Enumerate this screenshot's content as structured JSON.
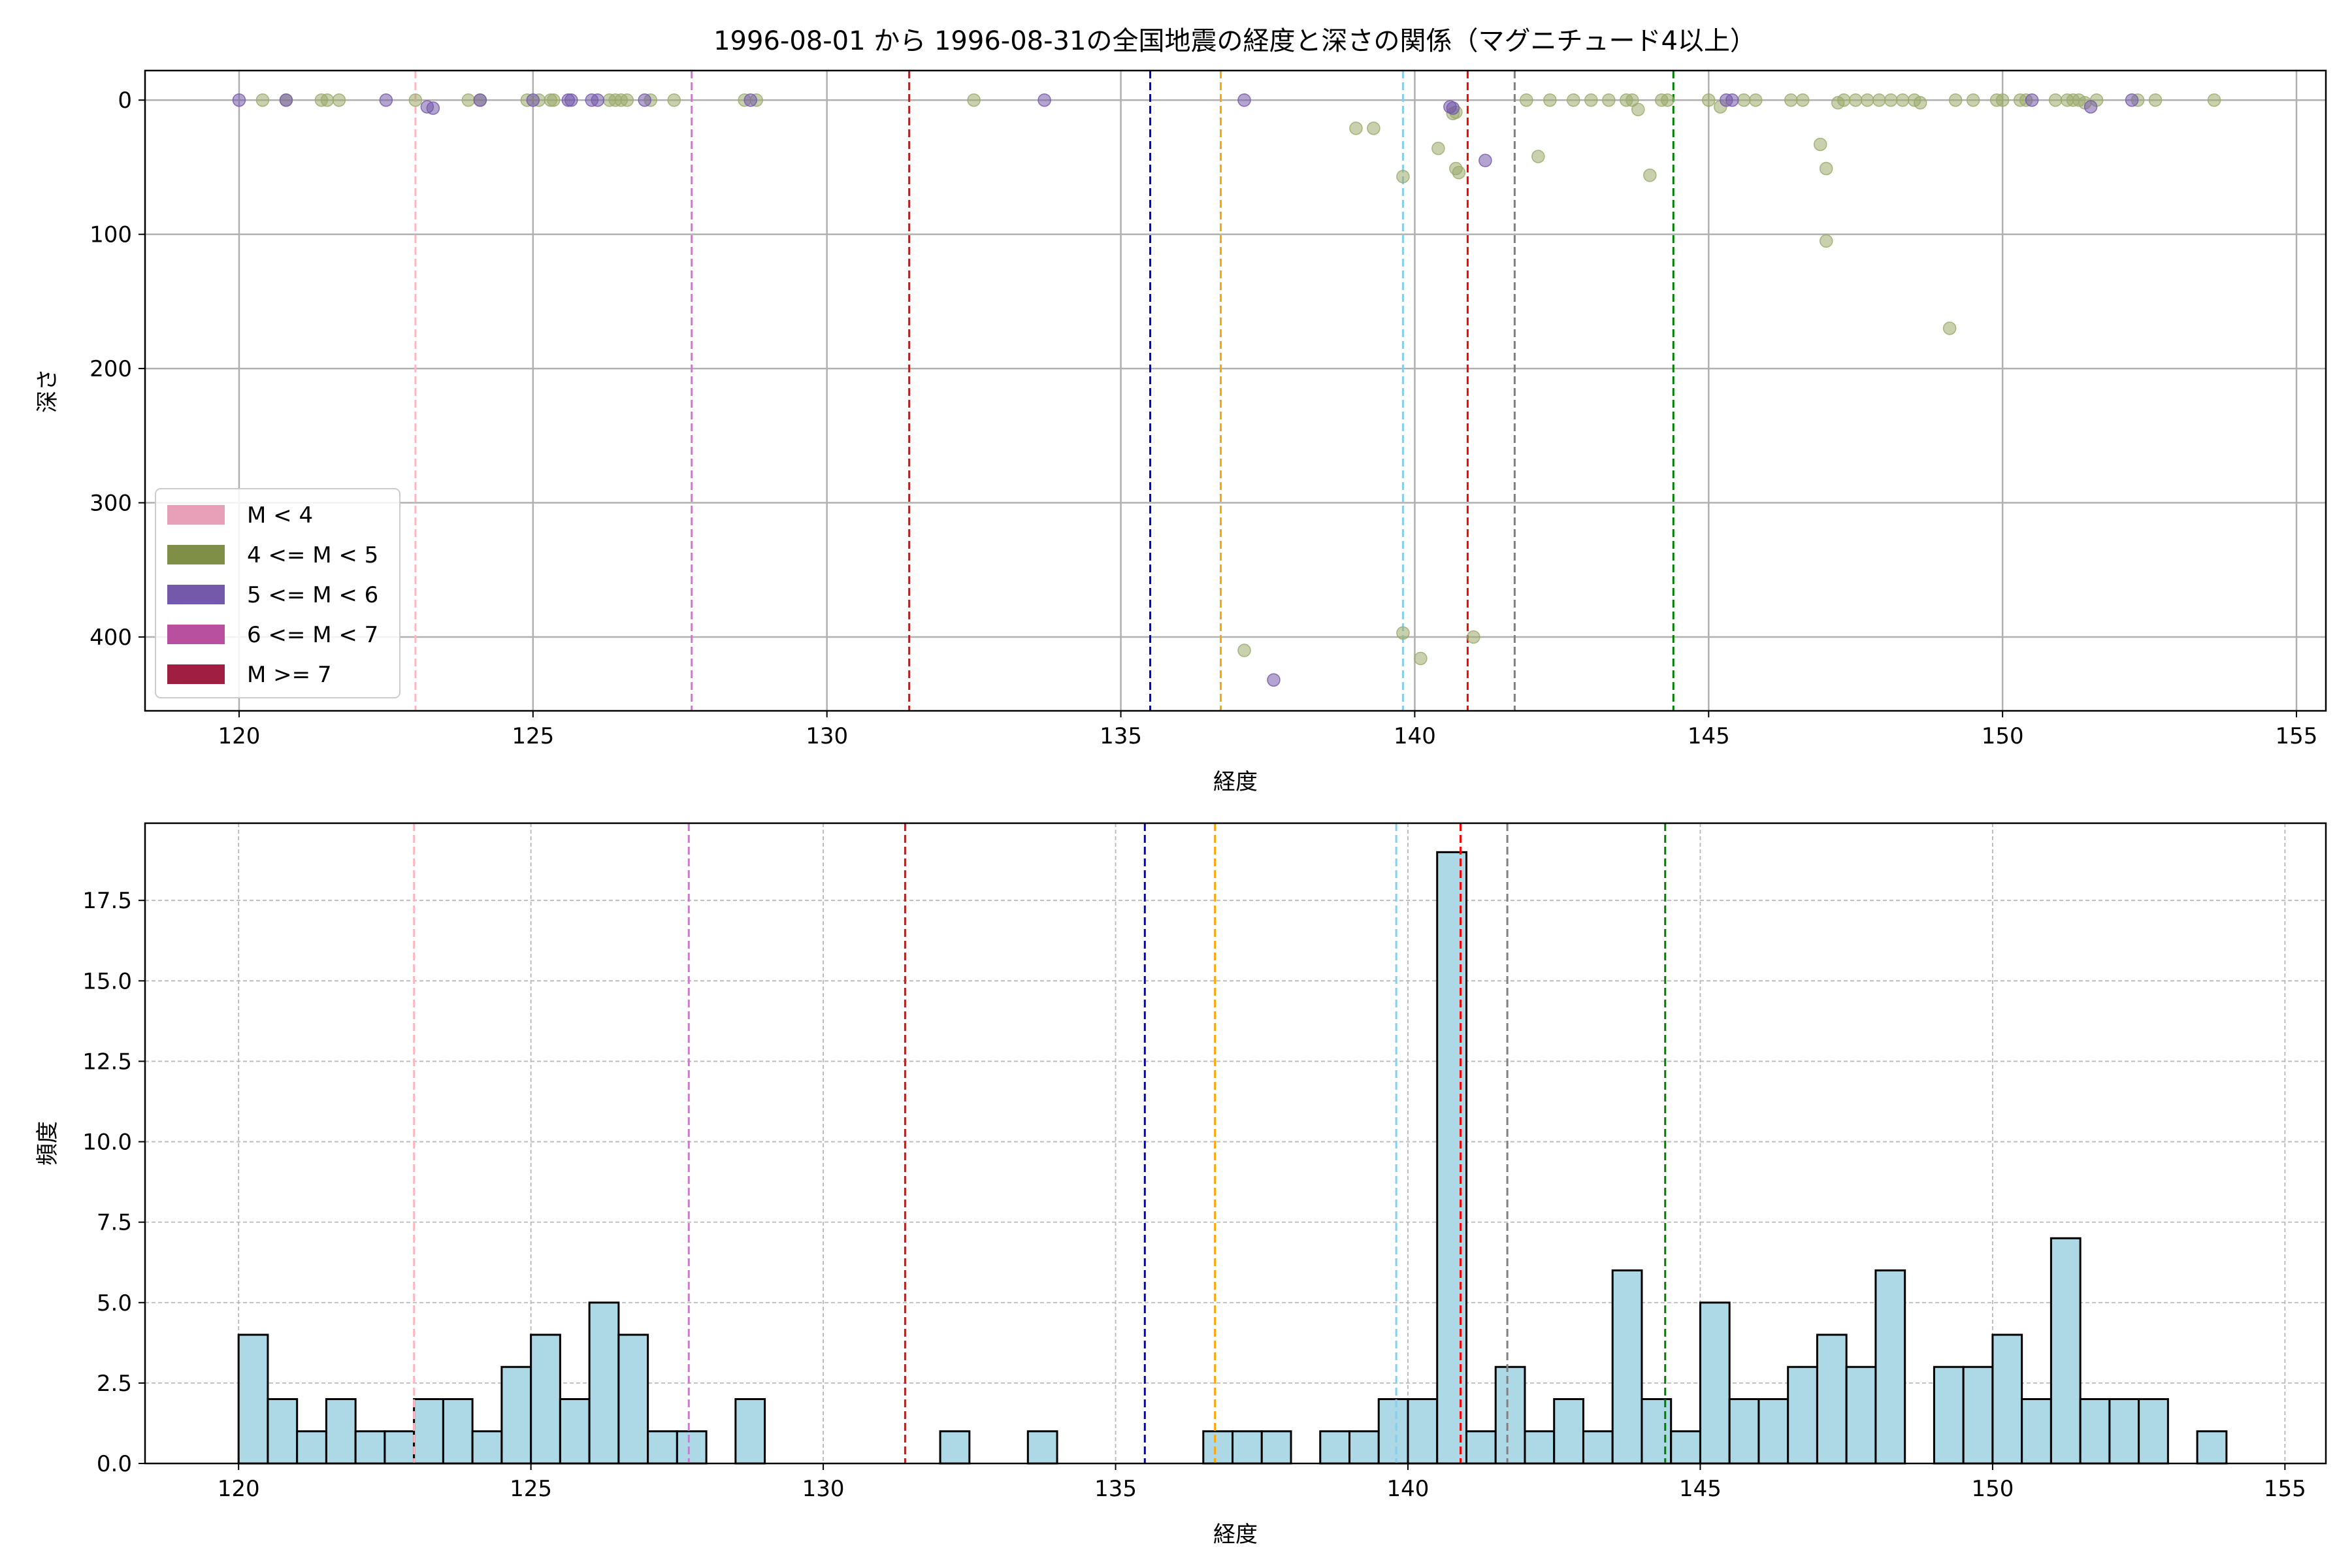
{
  "title": "1996-08-01 から 1996-08-31の全国地震の経度と深さの関係（マグニチュード4以上）",
  "colors": {
    "grid_top": "#b0b0b0",
    "grid_bottom": "#b8b8b8",
    "hist_fill": "#add8e6",
    "hist_edge": "#000000"
  },
  "chart_data": [
    {
      "type": "scatter",
      "xlabel": "経度",
      "ylabel": "深さ",
      "xlim": [
        118.4,
        155.5
      ],
      "ylim": [
        455,
        -22
      ],
      "y_inverted": true,
      "grid": true,
      "xticks": [
        120,
        125,
        130,
        135,
        140,
        145,
        150,
        155
      ],
      "yticks": [
        0,
        100,
        200,
        300,
        400
      ],
      "legend": {
        "placement": "lower-left",
        "entries": [
          {
            "label": "M < 4",
            "color": "#e8a0b8"
          },
          {
            "label": "4 <= M < 5",
            "color": "#7f8f45"
          },
          {
            "label": "5 <= M < 6",
            "color": "#7459aa"
          },
          {
            "label": "6 <= M < 7",
            "color": "#b84f9f"
          },
          {
            "label": "M >= 7",
            "color": "#a01e42"
          }
        ]
      },
      "vlines": [
        {
          "x": 123.0,
          "color": "#ffb6c1"
        },
        {
          "x": 127.7,
          "color": "#da70d6"
        },
        {
          "x": 131.4,
          "color": "#b22222"
        },
        {
          "x": 135.5,
          "color": "#0000cd"
        },
        {
          "x": 136.7,
          "color": "#ffa500"
        },
        {
          "x": 139.8,
          "color": "#87ceeb"
        },
        {
          "x": 140.9,
          "color": "#ff0000"
        },
        {
          "x": 141.7,
          "color": "#808080"
        },
        {
          "x": 144.4,
          "color": "#008000"
        }
      ],
      "series": [
        {
          "color": "#9aaa6c",
          "points": [
            [
              120.4,
              0
            ],
            [
              120.8,
              0
            ],
            [
              121.4,
              0
            ],
            [
              121.5,
              0
            ],
            [
              121.7,
              0
            ],
            [
              123.0,
              0
            ],
            [
              123.9,
              0
            ],
            [
              124.1,
              0
            ],
            [
              124.9,
              0
            ],
            [
              125.1,
              0
            ],
            [
              125.3,
              0
            ],
            [
              125.35,
              0
            ],
            [
              126.3,
              0
            ],
            [
              126.4,
              0
            ],
            [
              126.5,
              0
            ],
            [
              126.6,
              0
            ],
            [
              127.0,
              0
            ],
            [
              127.4,
              0
            ],
            [
              128.6,
              0
            ],
            [
              128.8,
              0
            ],
            [
              132.5,
              0
            ],
            [
              139.0,
              21
            ],
            [
              139.3,
              21
            ],
            [
              139.8,
              57
            ],
            [
              140.4,
              36
            ],
            [
              140.7,
              51
            ],
            [
              140.75,
              54
            ],
            [
              140.7,
              9
            ],
            [
              140.65,
              10
            ],
            [
              141.9,
              0
            ],
            [
              142.1,
              42
            ],
            [
              142.3,
              0
            ],
            [
              142.7,
              0
            ],
            [
              143.0,
              0
            ],
            [
              143.3,
              0
            ],
            [
              143.6,
              0
            ],
            [
              143.7,
              0
            ],
            [
              143.8,
              7
            ],
            [
              144.0,
              56
            ],
            [
              144.2,
              0
            ],
            [
              144.3,
              0
            ],
            [
              145.0,
              0
            ],
            [
              145.2,
              5
            ],
            [
              145.6,
              0
            ],
            [
              145.8,
              0
            ],
            [
              146.4,
              0
            ],
            [
              146.6,
              0
            ],
            [
              146.9,
              33
            ],
            [
              147.0,
              51
            ],
            [
              147.0,
              105
            ],
            [
              147.2,
              2
            ],
            [
              147.3,
              0
            ],
            [
              147.5,
              0
            ],
            [
              147.7,
              0
            ],
            [
              147.9,
              0
            ],
            [
              148.1,
              0
            ],
            [
              148.3,
              0
            ],
            [
              148.5,
              0
            ],
            [
              148.6,
              2
            ],
            [
              149.1,
              170
            ],
            [
              149.2,
              0
            ],
            [
              149.5,
              0
            ],
            [
              149.9,
              0
            ],
            [
              150.0,
              0
            ],
            [
              150.3,
              0
            ],
            [
              150.4,
              0
            ],
            [
              150.9,
              0
            ],
            [
              151.1,
              0
            ],
            [
              151.2,
              0
            ],
            [
              151.3,
              0
            ],
            [
              151.4,
              2
            ],
            [
              151.6,
              0
            ],
            [
              152.3,
              0
            ],
            [
              152.6,
              0
            ],
            [
              153.6,
              0
            ],
            [
              137.1,
              410
            ],
            [
              139.8,
              397
            ],
            [
              140.1,
              416
            ],
            [
              141.0,
              400
            ]
          ]
        },
        {
          "color": "#7459aa",
          "points": [
            [
              120.0,
              0
            ],
            [
              120.8,
              0
            ],
            [
              122.5,
              0
            ],
            [
              123.2,
              5
            ],
            [
              123.3,
              6
            ],
            [
              124.1,
              0
            ],
            [
              125.0,
              0
            ],
            [
              125.6,
              0
            ],
            [
              125.65,
              0
            ],
            [
              126.0,
              0
            ],
            [
              126.1,
              0
            ],
            [
              126.9,
              0
            ],
            [
              128.7,
              0
            ],
            [
              133.7,
              0
            ],
            [
              137.1,
              0
            ],
            [
              137.6,
              432
            ],
            [
              140.6,
              5
            ],
            [
              140.65,
              6
            ],
            [
              141.2,
              45
            ],
            [
              145.3,
              0
            ],
            [
              145.4,
              0
            ],
            [
              150.5,
              0
            ],
            [
              151.5,
              5
            ],
            [
              152.2,
              0
            ]
          ]
        }
      ]
    },
    {
      "type": "bar",
      "xlabel": "経度",
      "ylabel": "頻度",
      "xlim": [
        118.4,
        155.7
      ],
      "ylim": [
        0,
        19.9
      ],
      "grid": true,
      "xticks": [
        120,
        125,
        130,
        135,
        140,
        145,
        150,
        155
      ],
      "yticks": [
        0.0,
        2.5,
        5.0,
        7.5,
        10.0,
        12.5,
        15.0,
        17.5
      ],
      "ytick_labels": [
        "0.0",
        "2.5",
        "5.0",
        "7.5",
        "10.0",
        "12.5",
        "15.0",
        "17.5"
      ],
      "bin_start": 120.0,
      "bin_width": 0.5,
      "counts": [
        4,
        2,
        1,
        2,
        1,
        1,
        2,
        2,
        1,
        3,
        4,
        2,
        5,
        4,
        1,
        1,
        0,
        2,
        0,
        0,
        0,
        0,
        0,
        0,
        1,
        0,
        0,
        1,
        0,
        0,
        0,
        0,
        0,
        1,
        1,
        1,
        0,
        1,
        1,
        2,
        2,
        19,
        1,
        3,
        1,
        2,
        1,
        6,
        2,
        1,
        5,
        2,
        2,
        3,
        4,
        3,
        6,
        0,
        3,
        3,
        4,
        2,
        7,
        2,
        2,
        2,
        0,
        1
      ],
      "vlines": [
        {
          "x": 123.0,
          "color": "#ffb6c1"
        },
        {
          "x": 127.7,
          "color": "#da70d6"
        },
        {
          "x": 131.4,
          "color": "#b22222"
        },
        {
          "x": 135.5,
          "color": "#0000cd"
        },
        {
          "x": 136.7,
          "color": "#ffa500"
        },
        {
          "x": 139.8,
          "color": "#87ceeb"
        },
        {
          "x": 140.9,
          "color": "#ff0000"
        },
        {
          "x": 141.7,
          "color": "#808080"
        },
        {
          "x": 144.4,
          "color": "#008000"
        }
      ]
    }
  ]
}
